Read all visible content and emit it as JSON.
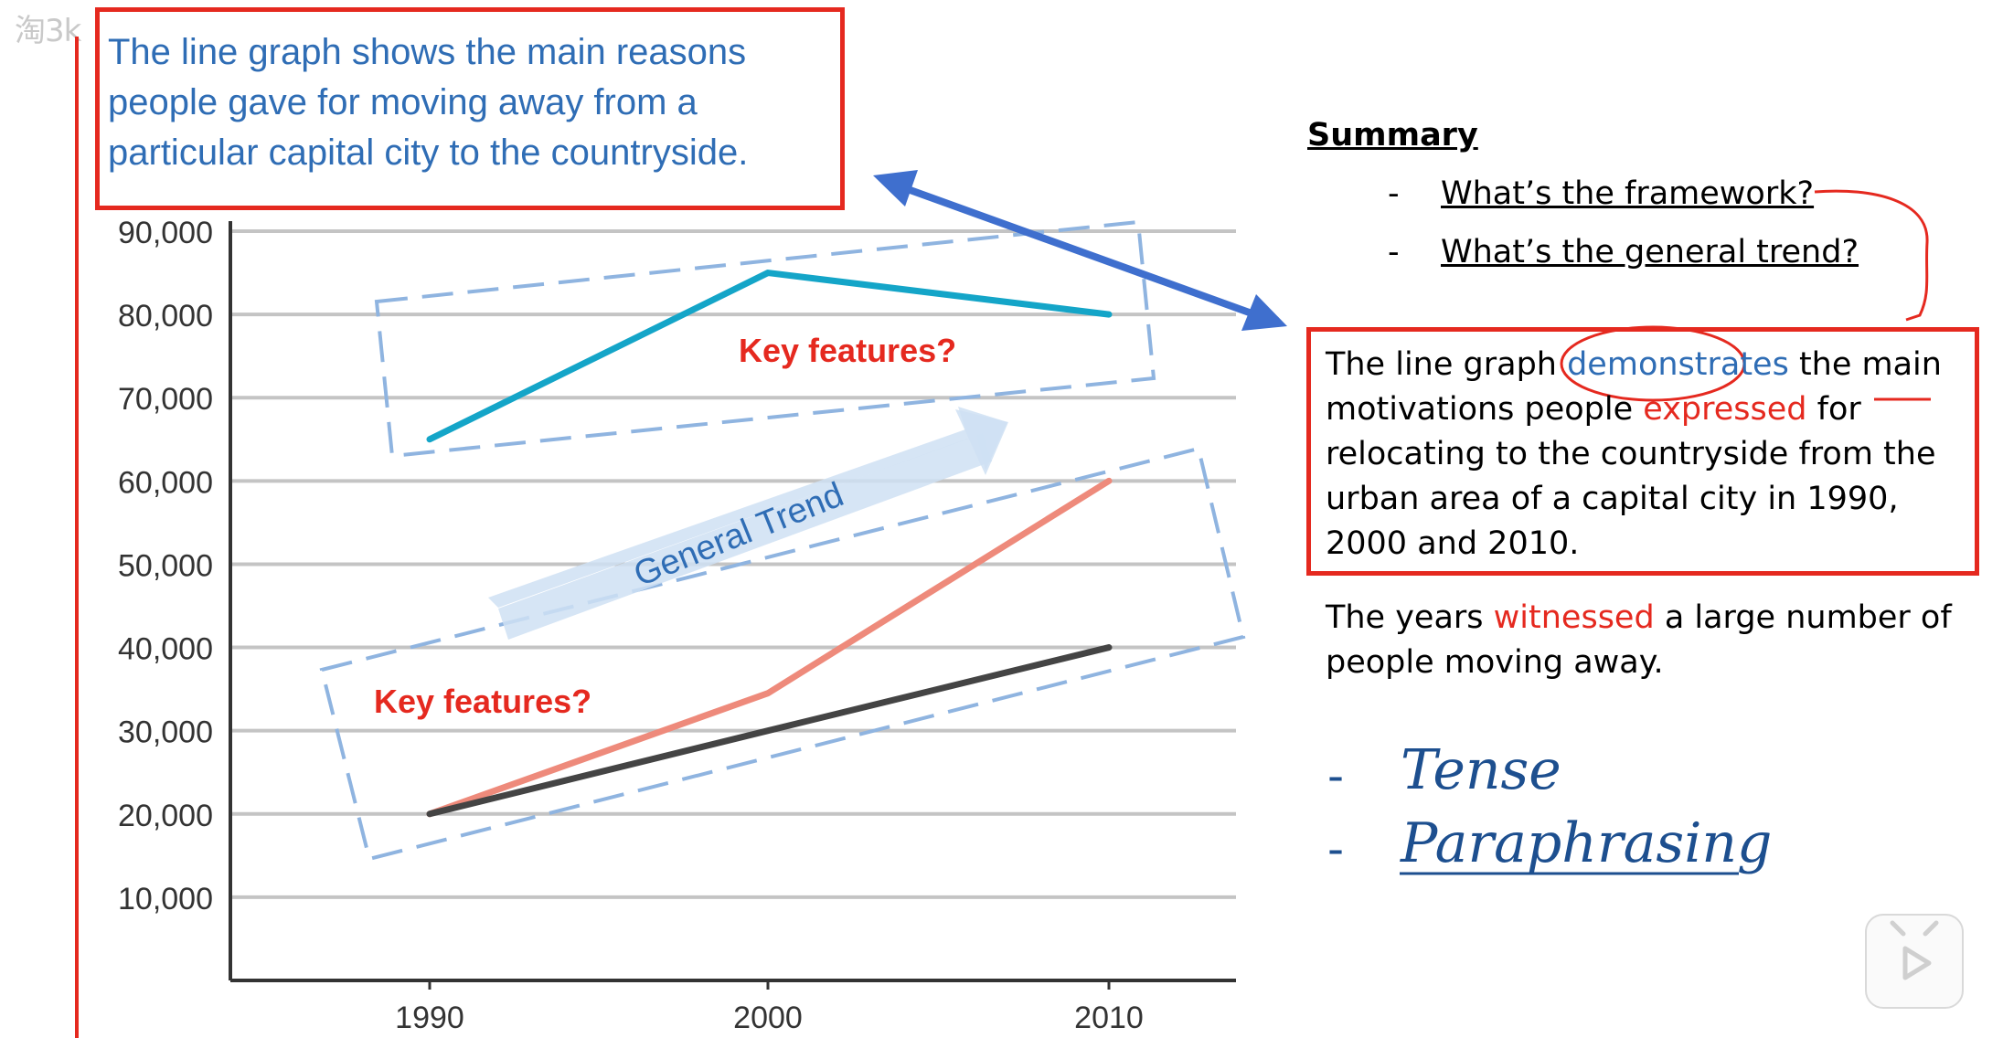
{
  "watermark": "淘3k",
  "title": "The line graph shows the main reasons people gave for moving away from a particular capital city to the countryside.",
  "annotations": {
    "key_features_top": "Key features?",
    "key_features_bottom": "Key features?",
    "general_trend": "General Trend"
  },
  "chart_data": {
    "type": "line",
    "x": [
      1990,
      2000,
      2010
    ],
    "y_ticks": [
      "90,000",
      "80,000",
      "70,000",
      "60,000",
      "50,000",
      "40,000",
      "30,000",
      "20,000",
      "10,000"
    ],
    "x_ticks": [
      "1990",
      "2000",
      "2010"
    ],
    "ylim": [
      0,
      90000
    ],
    "grid": true,
    "series": [
      {
        "color": "#14a5c8",
        "values": [
          65000,
          85000,
          80000
        ]
      },
      {
        "color": "#ee8a7b",
        "values": [
          20000,
          34500,
          60000
        ]
      },
      {
        "color": "#444444",
        "values": [
          20000,
          30000,
          40000
        ]
      }
    ]
  },
  "summary": {
    "heading": "Summary",
    "questions": [
      {
        "dash": "-",
        "text": "What’s the framework?"
      },
      {
        "dash": "-",
        "text": "What’s the general trend?"
      }
    ]
  },
  "paraphrase": {
    "l1a": "The line graph ",
    "l1b": "demonstrates",
    "l1c": " the main",
    "l2a": "motivations people ",
    "l2b": "expressed",
    "l2c": " for",
    "l3": "relocating to the countryside from the",
    "l4": "urban area of a capital city in 1990,",
    "l5": "2000 and 2010."
  },
  "trend_sentence": {
    "l1a": "The years ",
    "l1b": "witnessed",
    "l1c": " a large number of",
    "l2": "people moving away."
  },
  "handwritten": [
    {
      "dash": "-",
      "text": "Tense"
    },
    {
      "dash": "-",
      "text": "Paraphrasing"
    }
  ]
}
